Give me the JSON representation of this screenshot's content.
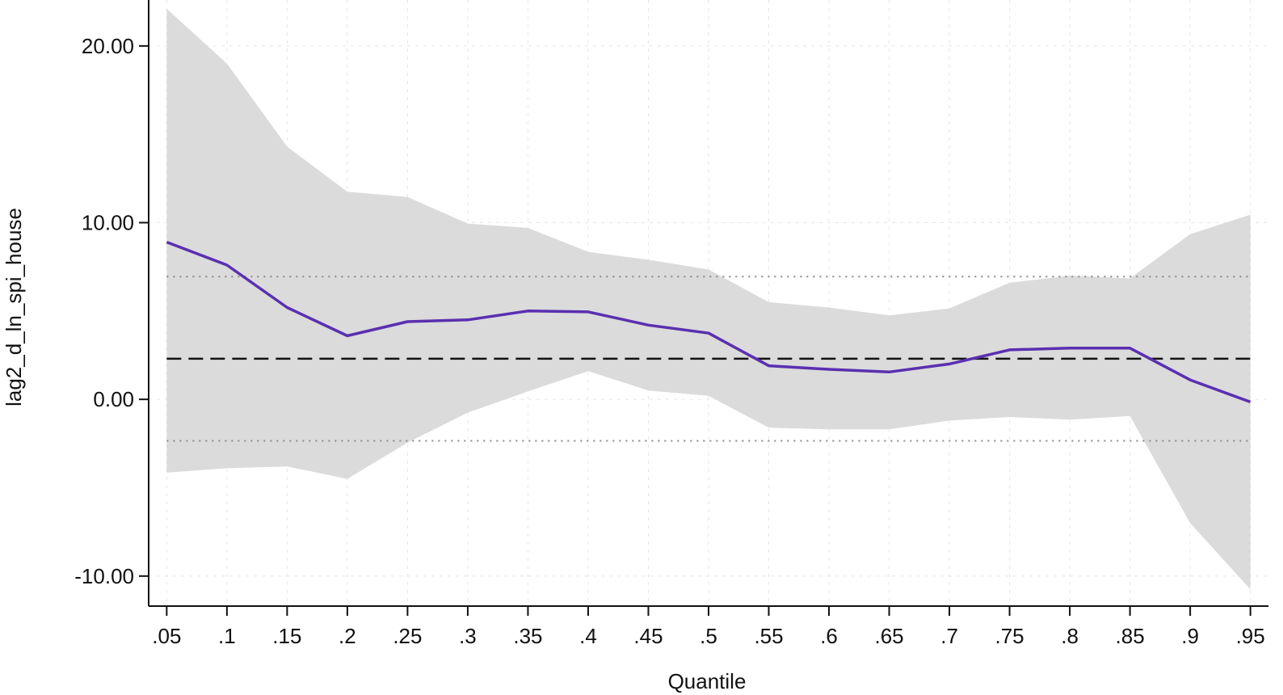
{
  "chart_data": {
    "type": "line",
    "title": "",
    "xlabel": "Quantile",
    "ylabel": "lag2_d_ln_spi_house",
    "x": [
      0.05,
      0.1,
      0.15,
      0.2,
      0.25,
      0.3,
      0.35,
      0.4,
      0.45,
      0.5,
      0.55,
      0.6,
      0.65,
      0.7,
      0.75,
      0.8,
      0.85,
      0.9,
      0.95
    ],
    "x_tick_labels": [
      ".05",
      ".1",
      ".15",
      ".2",
      ".25",
      ".3",
      ".35",
      ".4",
      ".45",
      ".5",
      ".55",
      ".6",
      ".65",
      ".7",
      ".75",
      ".8",
      ".85",
      ".9",
      ".95"
    ],
    "y_ticks": [
      -10,
      0,
      10,
      20
    ],
    "y_tick_labels": [
      "-10.00",
      "0.00",
      "10.00",
      "20.00"
    ],
    "ylim": [
      -11.7,
      22.6
    ],
    "xlim": [
      0.035,
      0.965
    ],
    "grid": true,
    "quantile_estimate": {
      "color": "#5a2fb0",
      "values": [
        8.9,
        7.6,
        5.2,
        3.6,
        4.4,
        4.5,
        5.0,
        4.95,
        4.2,
        3.75,
        1.9,
        1.7,
        1.55,
        2.0,
        2.8,
        2.9,
        2.9,
        1.1,
        -0.15
      ]
    },
    "confidence_band": {
      "color": "#d9d9d9",
      "lower": [
        -4.15,
        -3.9,
        -3.8,
        -4.5,
        -2.45,
        -0.75,
        0.45,
        1.6,
        0.5,
        0.2,
        -1.6,
        -1.7,
        -1.7,
        -1.2,
        -1.0,
        -1.15,
        -0.95,
        -7.0,
        -10.75
      ],
      "upper": [
        22.1,
        19.0,
        14.3,
        11.75,
        11.45,
        9.95,
        9.7,
        8.35,
        7.9,
        7.35,
        5.5,
        5.2,
        4.75,
        5.15,
        6.6,
        7.0,
        6.85,
        9.35,
        10.45
      ]
    },
    "reference_lines": [
      {
        "style": "dashed",
        "value": 2.3,
        "color": "#111111"
      },
      {
        "style": "dotted",
        "value": 6.95,
        "color": "#888888"
      },
      {
        "style": "dotted",
        "value": -2.35,
        "color": "#888888"
      }
    ]
  }
}
